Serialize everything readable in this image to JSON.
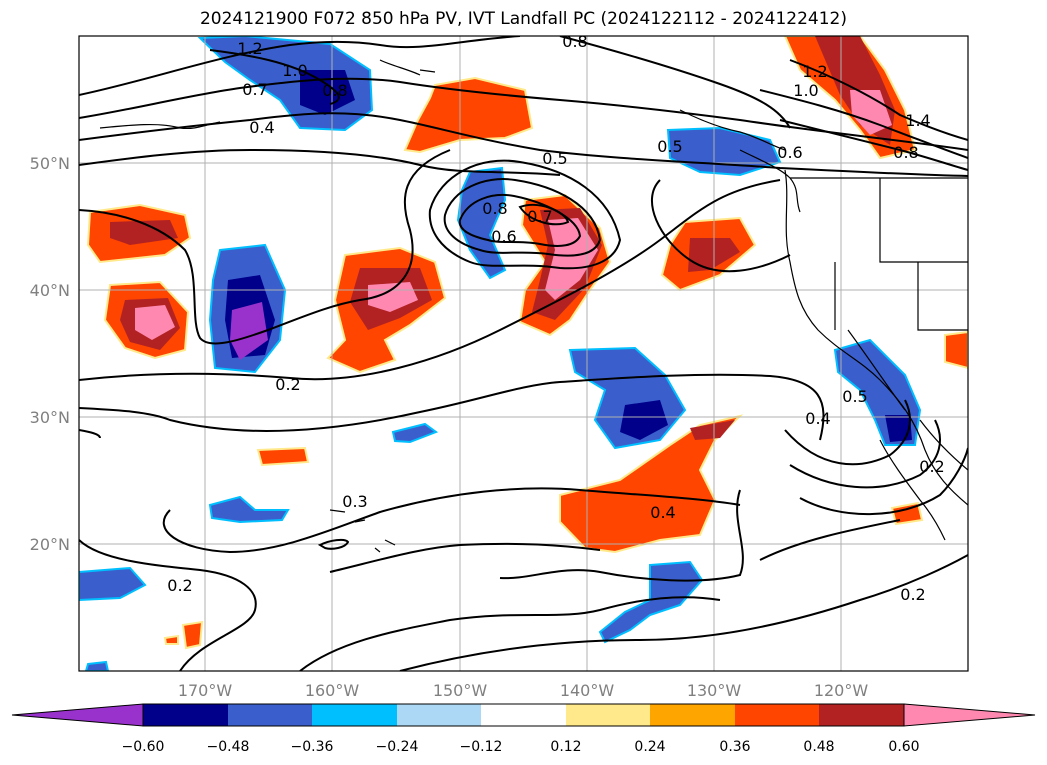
{
  "title": "2024121900 F072 850 hPa PV, IVT Landfall PC (2024122112 - 2024122412)",
  "axes": {
    "lat_labels": [
      "50°N",
      "40°N",
      "30°N",
      "20°N"
    ],
    "lon_labels": [
      "170°W",
      "160°W",
      "150°W",
      "140°W",
      "130°W",
      "120°W"
    ]
  },
  "contour_labels": [
    "1.2",
    "1.0",
    "0.8",
    "0.7",
    "0.4",
    "0.8",
    "0.5",
    "0.5",
    "0.6",
    "0.8",
    "0.7",
    "0.6",
    "1.2",
    "1.0",
    "1.4",
    "0.8",
    "0.2",
    "0.3",
    "0.4",
    "0.2",
    "0.4",
    "0.5",
    "0.2",
    "0.2"
  ],
  "colorbar": {
    "ticks": [
      "−0.60",
      "−0.48",
      "−0.36",
      "−0.24",
      "−0.12",
      "0.12",
      "0.24",
      "0.36",
      "0.48",
      "0.60"
    ],
    "colors": [
      "#9932cc",
      "#00008b",
      "#3a5fcd",
      "#00bfff",
      "#add8f5",
      "#ffffff",
      "#ffe98a",
      "#ffa500",
      "#ff4500",
      "#b22222",
      "#ff88b0",
      "#ff88b0"
    ]
  },
  "palette": {
    "neg_1": "#00bfff",
    "neg_2": "#3a5fcd",
    "neg_3": "#00008b",
    "neg_4": "#9932cc",
    "pos_1": "#ffe98a",
    "pos_2": "#ff4500",
    "pos_3": "#b22222",
    "pos_4": "#ff88b0"
  }
}
